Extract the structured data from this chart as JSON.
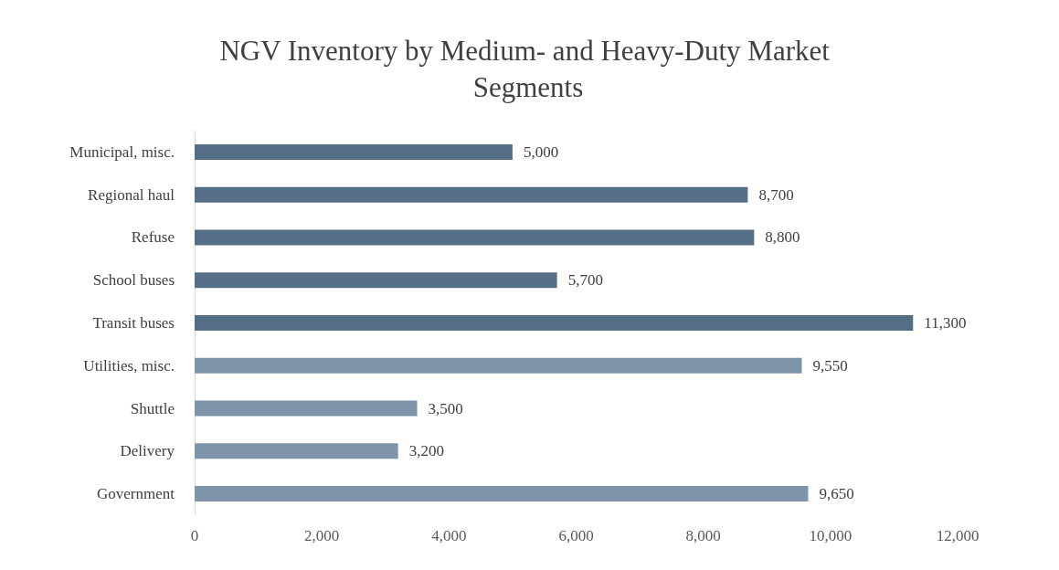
{
  "chart_data": {
    "type": "bar",
    "orientation": "horizontal",
    "title": "NGV Inventory by Medium- and Heavy-Duty Market Segments",
    "categories": [
      "Municipal, misc.",
      "Regional haul",
      "Refuse",
      "School buses",
      "Transit buses",
      "Utilities, misc.",
      "Shuttle",
      "Delivery",
      "Government"
    ],
    "values": [
      5000,
      8700,
      8800,
      5700,
      11300,
      9550,
      3500,
      3200,
      9650
    ],
    "value_labels": [
      "5,000",
      "8,700",
      "8,800",
      "5,700",
      "11,300",
      "9,550",
      "3,500",
      "3,200",
      "9,650"
    ],
    "colors": [
      "#546e85",
      "#546e85",
      "#546e85",
      "#546e85",
      "#546e85",
      "#7d94ab",
      "#7d94ab",
      "#7d94ab",
      "#7d94ab"
    ],
    "xlim": [
      0,
      12000
    ],
    "xticks": [
      0,
      {
        "value": 2000,
        "label": "2,000"
      },
      {
        "value": 4000,
        "label": "4,000"
      },
      {
        "value": 6000,
        "label": "6,000"
      },
      {
        "value": 8000,
        "label": "8,000"
      },
      {
        "value": 10000,
        "label": "10,000"
      },
      {
        "value": 12000,
        "label": "12,000"
      }
    ],
    "grid": false
  }
}
